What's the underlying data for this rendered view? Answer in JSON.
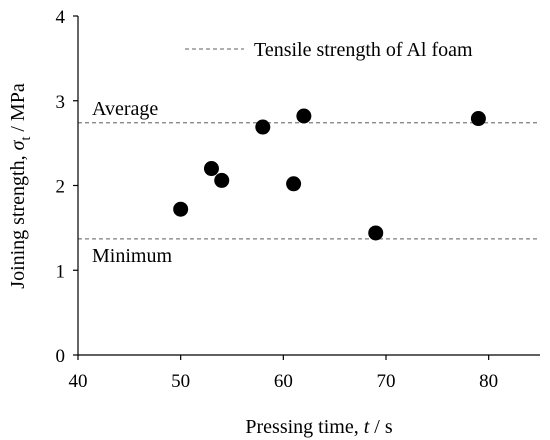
{
  "chart_data": {
    "type": "scatter",
    "title": "",
    "xlabel": {
      "prefix": "Pressing time, ",
      "symbol": "t",
      "suffix": " / s"
    },
    "ylabel": {
      "prefix": "Joining strength, ",
      "symbol": "σ",
      "subscript": "t",
      "suffix": " / MPa"
    },
    "xlim": [
      40,
      85
    ],
    "ylim": [
      0,
      4
    ],
    "xticks": [
      40,
      50,
      60,
      70,
      80
    ],
    "yticks": [
      0,
      1,
      2,
      3,
      4
    ],
    "grid": false,
    "legend": {
      "placement": "top-right",
      "entries": [
        {
          "label": "Tensile strength of Al foam",
          "style": "dashed"
        }
      ]
    },
    "reference_lines": [
      {
        "label": "Average",
        "y": 2.74,
        "style": "dashed"
      },
      {
        "label": "Minimum",
        "y": 1.37,
        "style": "dashed"
      }
    ],
    "series": [
      {
        "points": [
          {
            "x": 50,
            "y": 1.72
          },
          {
            "x": 53,
            "y": 2.2
          },
          {
            "x": 54,
            "y": 2.06
          },
          {
            "x": 58,
            "y": 2.69
          },
          {
            "x": 61,
            "y": 2.02
          },
          {
            "x": 62,
            "y": 2.82
          },
          {
            "x": 69,
            "y": 1.44
          },
          {
            "x": 79,
            "y": 2.79
          }
        ]
      }
    ],
    "colors": {
      "axis": "#000000",
      "points": "#000000",
      "reference_line": "#7f7f7f"
    }
  }
}
